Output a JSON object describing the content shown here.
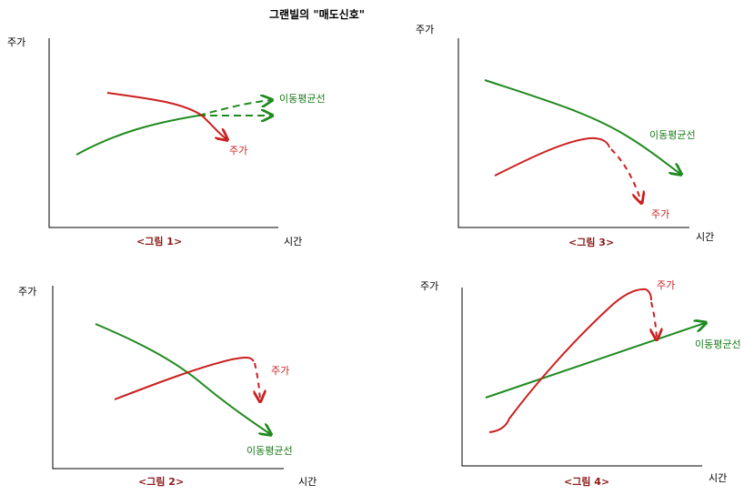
{
  "title": "그랜빌의 \"매도신호\"",
  "colors": {
    "price": "#cc1f1f",
    "moving_average": "#1f8a1f",
    "axis": "#000000",
    "caption": "#8b1a1a"
  },
  "panels": [
    {
      "caption": "<그림 1>",
      "y_label": "주가",
      "x_label": "시간",
      "ma_label": "이동평균선",
      "price_label": "주가"
    },
    {
      "caption": "<그림 2>",
      "y_label": "주가",
      "x_label": "시간",
      "ma_label": "이동평균선",
      "price_label": "주가"
    },
    {
      "caption": "<그림 3>",
      "y_label": "주가",
      "x_label": "시간",
      "ma_label": "이동평균선",
      "price_label": "주가"
    },
    {
      "caption": "<그림 4>",
      "y_label": "주가",
      "x_label": "시간",
      "ma_label": "이동평균선",
      "price_label": "주가"
    }
  ]
}
